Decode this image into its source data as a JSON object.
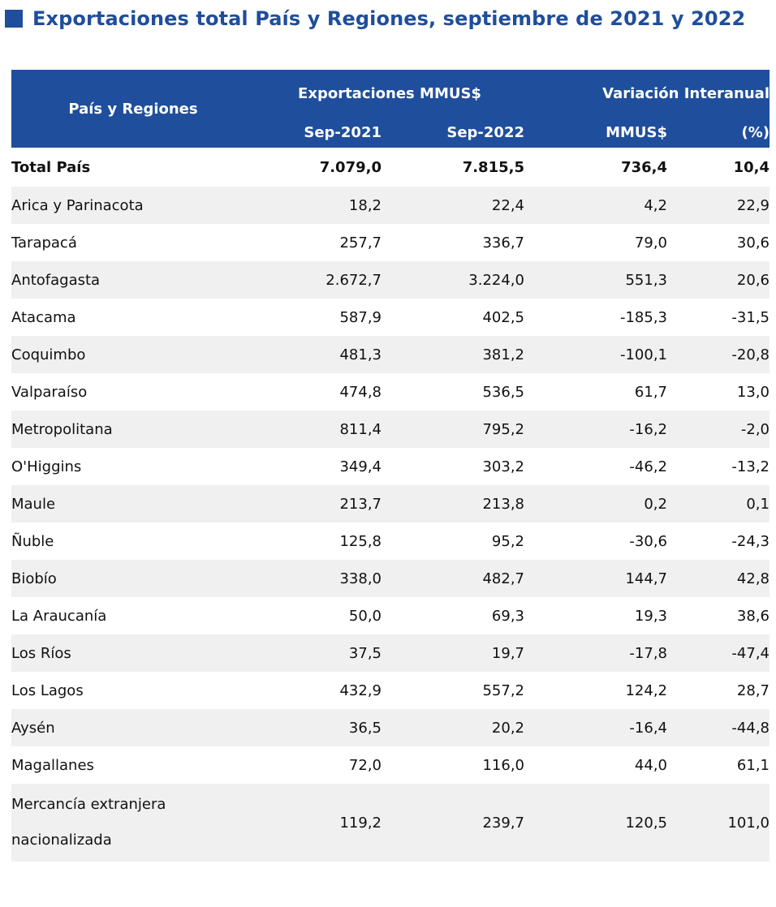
{
  "title": "Exportaciones total País y Regiones, septiembre de 2021 y 2022",
  "header": {
    "region": "País y Regiones",
    "exports_group": "Exportaciones MMUS$",
    "variation_group": "Variación Interanual",
    "sep2021": "Sep-2021",
    "sep2022": "Sep-2022",
    "mmus": "MMUS$",
    "pct": "(%)"
  },
  "total": {
    "region": "Total País",
    "sep2021": "7.079,0",
    "sep2022": "7.815,5",
    "mmus": "736,4",
    "pct": "10,4"
  },
  "rows": [
    {
      "region": "Arica y Parinacota",
      "sep2021": "18,2",
      "sep2022": "22,4",
      "mmus": "4,2",
      "pct": "22,9"
    },
    {
      "region": "Tarapacá",
      "sep2021": "257,7",
      "sep2022": "336,7",
      "mmus": "79,0",
      "pct": "30,6"
    },
    {
      "region": "Antofagasta",
      "sep2021": "2.672,7",
      "sep2022": "3.224,0",
      "mmus": "551,3",
      "pct": "20,6"
    },
    {
      "region": "Atacama",
      "sep2021": "587,9",
      "sep2022": "402,5",
      "mmus": "-185,3",
      "pct": "-31,5"
    },
    {
      "region": "Coquimbo",
      "sep2021": "481,3",
      "sep2022": "381,2",
      "mmus": "-100,1",
      "pct": "-20,8"
    },
    {
      "region": "Valparaíso",
      "sep2021": "474,8",
      "sep2022": "536,5",
      "mmus": "61,7",
      "pct": "13,0"
    },
    {
      "region": "Metropolitana",
      "sep2021": "811,4",
      "sep2022": "795,2",
      "mmus": "-16,2",
      "pct": "-2,0"
    },
    {
      "region": "O'Higgins",
      "sep2021": "349,4",
      "sep2022": "303,2",
      "mmus": "-46,2",
      "pct": "-13,2"
    },
    {
      "region": "Maule",
      "sep2021": "213,7",
      "sep2022": "213,8",
      "mmus": "0,2",
      "pct": "0,1"
    },
    {
      "region": "Ñuble",
      "sep2021": "125,8",
      "sep2022": "95,2",
      "mmus": "-30,6",
      "pct": "-24,3"
    },
    {
      "region": "Biobío",
      "sep2021": "338,0",
      "sep2022": "482,7",
      "mmus": "144,7",
      "pct": "42,8"
    },
    {
      "region": "La Araucanía",
      "sep2021": "50,0",
      "sep2022": "69,3",
      "mmus": "19,3",
      "pct": "38,6"
    },
    {
      "region": "Los Ríos",
      "sep2021": "37,5",
      "sep2022": "19,7",
      "mmus": "-17,8",
      "pct": "-47,4"
    },
    {
      "region": "Los Lagos",
      "sep2021": "432,9",
      "sep2022": "557,2",
      "mmus": "124,2",
      "pct": "28,7"
    },
    {
      "region": "Aysén",
      "sep2021": "36,5",
      "sep2022": "20,2",
      "mmus": "-16,4",
      "pct": "-44,8"
    },
    {
      "region": "Magallanes",
      "sep2021": "72,0",
      "sep2022": "116,0",
      "mmus": "44,0",
      "pct": "61,1"
    },
    {
      "region": "Mercancía extranjera nacionalizada",
      "sep2021": "119,2",
      "sep2022": "239,7",
      "mmus": "120,5",
      "pct": "101,0"
    }
  ],
  "colors": {
    "header_blue": "#1f4e9c",
    "row_shade": "#f0f0f0"
  }
}
